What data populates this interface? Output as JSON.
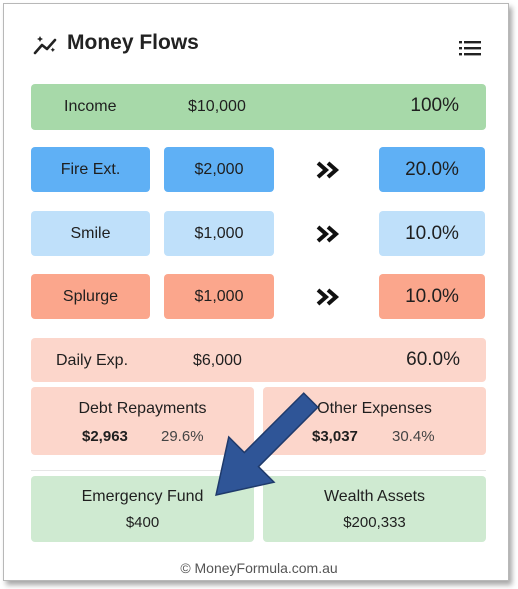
{
  "header": {
    "title": "Money Flows",
    "icon": "trending-icon",
    "menu_icon": "menu-icon"
  },
  "income": {
    "label": "Income",
    "amount": "$10,000",
    "percent": "100%"
  },
  "buckets": [
    {
      "label": "Fire Ext.",
      "amount": "$2,000",
      "percent": "20.0%",
      "color": "#5fb0f5"
    },
    {
      "label": "Smile",
      "amount": "$1,000",
      "percent": "10.0%",
      "color": "#bfe0fa"
    },
    {
      "label": "Splurge",
      "amount": "$1,000",
      "percent": "10.0%",
      "color": "#fba68c"
    }
  ],
  "daily": {
    "label": "Daily Exp.",
    "amount": "$6,000",
    "percent": "60.0%"
  },
  "debt": {
    "label": "Debt Repayments",
    "amount": "$2,963",
    "percent": "29.6%"
  },
  "other": {
    "label": "Other Expenses",
    "amount": "$3,037",
    "percent": "30.4%"
  },
  "emergency": {
    "label": "Emergency Fund",
    "amount": "$400"
  },
  "wealth": {
    "label": "Wealth Assets",
    "amount": "$200,333"
  },
  "footer": {
    "text": "© MoneyFormula.com.au"
  },
  "colors": {
    "income": "#a7d9a9",
    "daily": "#fcd6cb",
    "savings": "#cfead1",
    "arrow": "#2f5597"
  }
}
